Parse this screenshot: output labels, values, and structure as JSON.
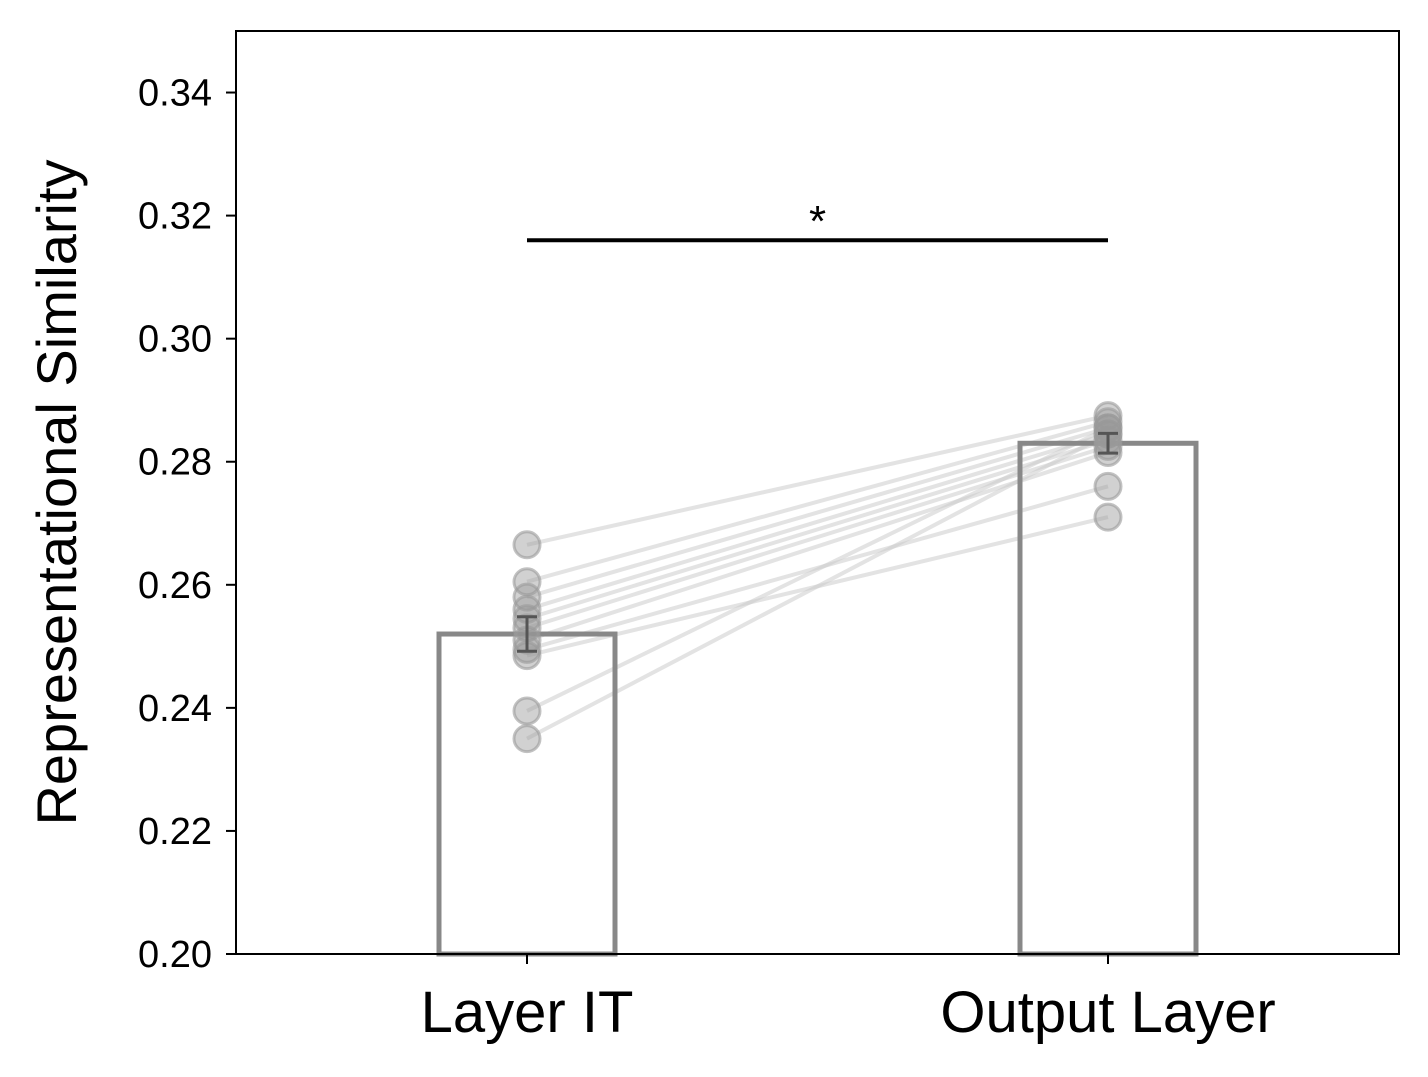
{
  "chart_data": {
    "type": "bar",
    "title": "",
    "xlabel": "",
    "ylabel": "Representational Similarity",
    "ylim": [
      0.2,
      0.35
    ],
    "yticks": [
      0.2,
      0.22,
      0.24,
      0.26,
      0.28,
      0.3,
      0.32,
      0.34
    ],
    "ytick_labels": [
      "0.20",
      "0.22",
      "0.24",
      "0.26",
      "0.28",
      "0.30",
      "0.32",
      "0.34"
    ],
    "categories": [
      "Layer IT",
      "Output Layer"
    ],
    "values": [
      0.252,
      0.283
    ],
    "error": [
      0.0028,
      0.0016
    ],
    "subjects": [
      [
        0.2665,
        0.2875
      ],
      [
        0.2605,
        0.2865
      ],
      [
        0.258,
        0.2855
      ],
      [
        0.256,
        0.2845
      ],
      [
        0.2545,
        0.2835
      ],
      [
        0.253,
        0.2825
      ],
      [
        0.251,
        0.2815
      ],
      [
        0.2495,
        0.276
      ],
      [
        0.2485,
        0.271
      ],
      [
        0.2395,
        0.2855
      ],
      [
        0.235,
        0.2845
      ]
    ],
    "significance": {
      "label": "*",
      "y": 0.316
    },
    "colors": {
      "bar_edge": "#888888",
      "bar_fill": "#ffffff",
      "point": "#9a9a9a",
      "line": "#cccccc",
      "errorbar": "#555555",
      "sig": "#000000"
    },
    "grid": false,
    "legend": "none"
  }
}
